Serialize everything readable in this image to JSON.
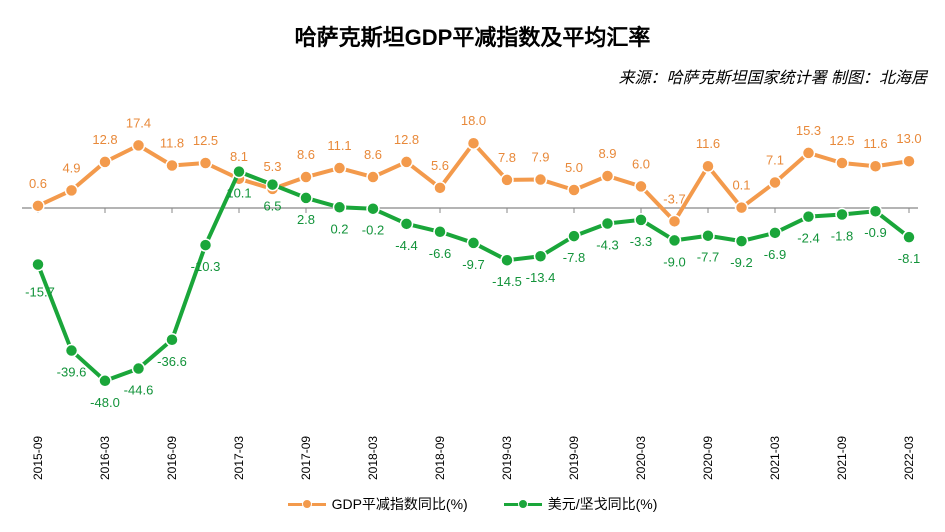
{
  "header": {
    "title": "哈萨克斯坦GDP平减指数及平均汇率",
    "source": "来源：哈萨克斯坦国家统计署  制图：北海居"
  },
  "colors": {
    "gdp_series": "#F39A4C",
    "fx_series": "#1AA63A",
    "gdp_label": "#E8893A",
    "fx_label": "#12933A",
    "axis": "#888888"
  },
  "chart_data": {
    "type": "line",
    "title": "哈萨克斯坦GDP平减指数及平均汇率",
    "x": [
      "2015-09",
      "2015-12",
      "2016-03",
      "2016-06",
      "2016-09",
      "2016-12",
      "2017-03",
      "2017-06",
      "2017-09",
      "2017-12",
      "2018-03",
      "2018-06",
      "2018-09",
      "2018-12",
      "2019-03",
      "2019-06",
      "2019-09",
      "2019-12",
      "2020-03",
      "2020-06",
      "2020-09",
      "2020-12",
      "2021-03",
      "2021-06",
      "2021-09",
      "2021-12",
      "2022-03"
    ],
    "tick_labels": [
      "2015-09",
      "2016-03",
      "2016-09",
      "2017-03",
      "2017-09",
      "2018-03",
      "2018-09",
      "2019-03",
      "2019-09",
      "2020-03",
      "2020-09",
      "2021-03",
      "2021-09",
      "2022-03"
    ],
    "series": [
      {
        "name": "GDP平减指数同比(%)",
        "values": [
          0.6,
          4.9,
          12.8,
          17.4,
          11.8,
          12.5,
          8.1,
          5.3,
          8.6,
          11.1,
          8.6,
          12.8,
          5.6,
          18.0,
          7.8,
          7.9,
          5.0,
          8.9,
          6.0,
          -3.7,
          11.6,
          0.1,
          7.1,
          15.3,
          12.5,
          11.6,
          13.0
        ]
      },
      {
        "name": "美元/坚戈同比(%)",
        "values": [
          -15.7,
          -39.6,
          -48.0,
          -44.6,
          -36.6,
          -10.3,
          10.1,
          6.5,
          2.8,
          0.2,
          -0.2,
          -4.4,
          -6.6,
          -9.7,
          -14.5,
          -13.4,
          -7.8,
          -4.3,
          -3.3,
          -9.0,
          -7.7,
          -9.2,
          -6.9,
          -2.4,
          -1.8,
          -0.9,
          -8.1
        ]
      }
    ],
    "data_labels": [
      [
        "0.6",
        "4.9",
        "12.8",
        "17.4",
        "11.8",
        "12.5",
        "8.1",
        "5.3",
        "8.6",
        "11.1",
        "8.6",
        "12.8",
        "5.6",
        "18.0",
        "7.8",
        "7.9",
        "5.0",
        "8.9",
        "6.0",
        "-3.7",
        "11.6",
        "0.1",
        "7.1",
        "15.3",
        "12.5",
        "11.6",
        "13.0"
      ],
      [
        "-15.7",
        "-39.6",
        "-48.0",
        "-44.6",
        "-36.6",
        "-10.3",
        "10.1",
        "6.5",
        "2.8",
        "0.2",
        "-0.2",
        "-4.4",
        "-6.6",
        "-9.7",
        "-14.5",
        "-13.4",
        "-7.8",
        "-4.3",
        "-3.3",
        "-9.0",
        "-7.7",
        "-9.2",
        "-6.9",
        "-2.4",
        "-1.8",
        "-0.9",
        "-8.1"
      ]
    ],
    "ylim": [
      -50,
      30
    ],
    "grid": false,
    "legend": "bottom"
  }
}
